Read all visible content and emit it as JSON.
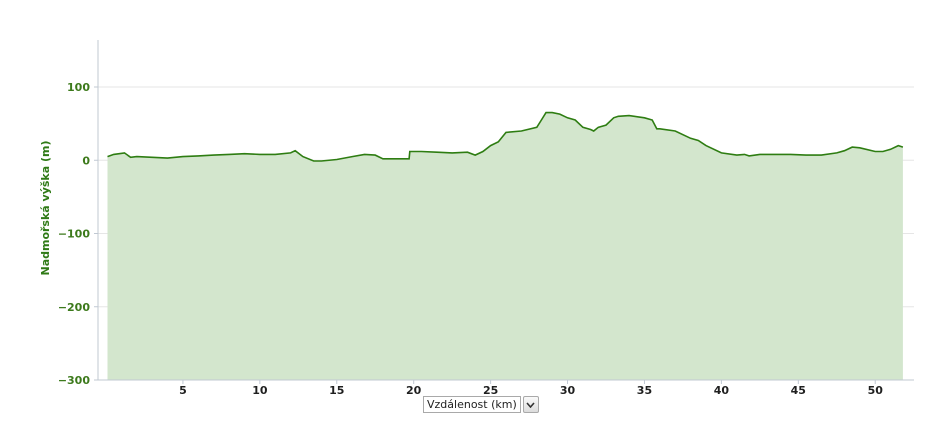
{
  "chart_data": {
    "type": "area",
    "title": "",
    "ylabel": "Nadmořská výška (m)",
    "xlabel": "Vzdálenost (km)",
    "xlim": [
      0,
      52
    ],
    "ylim": [
      -300,
      150
    ],
    "yticks": [
      -300,
      -200,
      -100,
      0,
      100
    ],
    "ytick_labels": [
      "−300",
      "−200",
      "−100",
      "0",
      "100"
    ],
    "xticks": [
      5,
      10,
      15,
      20,
      25,
      30,
      35,
      40,
      45,
      50
    ],
    "xtick_labels": [
      "5",
      "10",
      "15",
      "20",
      "25",
      "30",
      "35",
      "40",
      "45",
      "50"
    ],
    "grid": true,
    "colors": {
      "line": "#2e7d12",
      "fill": "#d3e6cd",
      "grid": "#e6e6e6",
      "axis": "#c0c8d2"
    },
    "series": [
      {
        "x": [
          0.1,
          0.5,
          1.2,
          1.6,
          2.0,
          3.0,
          4.0,
          5.0,
          6.0,
          7.0,
          8.0,
          9.0,
          10.0,
          11.0,
          12.0,
          12.3,
          12.8,
          13.5,
          14.0,
          15.0,
          16.0,
          16.8,
          17.5,
          18.0,
          19.0,
          19.7,
          19.75,
          20.5,
          21.5,
          22.5,
          23.5,
          24.0,
          24.5,
          25.0,
          25.5,
          26.0,
          27.0,
          28.0,
          28.3,
          28.6,
          29.0,
          29.5,
          30.0,
          30.5,
          31.0,
          31.5,
          31.7,
          32.0,
          32.5,
          33.0,
          33.3,
          34.0,
          35.0,
          35.5,
          35.8,
          36.0,
          37.0,
          38.0,
          38.5,
          39.0,
          40.0,
          41.0,
          41.5,
          41.8,
          42.5,
          43.5,
          44.5,
          45.5,
          46.5,
          47.5,
          48.0,
          48.5,
          49.0,
          50.0,
          50.5,
          51.0,
          51.5,
          51.8
        ],
        "y": [
          5,
          8,
          10,
          4,
          5,
          4,
          3,
          5,
          6,
          7,
          8,
          9,
          8,
          8,
          10,
          13,
          5,
          -1,
          -1,
          1,
          5,
          8,
          7,
          2,
          2,
          2,
          12,
          12,
          11,
          10,
          11,
          7,
          12,
          20,
          25,
          38,
          40,
          45,
          55,
          65,
          65,
          63,
          58,
          55,
          45,
          42,
          40,
          45,
          48,
          58,
          60,
          61,
          58,
          55,
          43,
          43,
          40,
          30,
          27,
          20,
          10,
          7,
          8,
          6,
          8,
          8,
          8,
          7,
          7,
          10,
          13,
          18,
          17,
          12,
          12,
          15,
          20,
          18
        ]
      }
    ]
  },
  "axis_selector": {
    "selected": "Vzdálenost (km)"
  },
  "icons": {
    "dropdown": "chevron-down-icon"
  }
}
